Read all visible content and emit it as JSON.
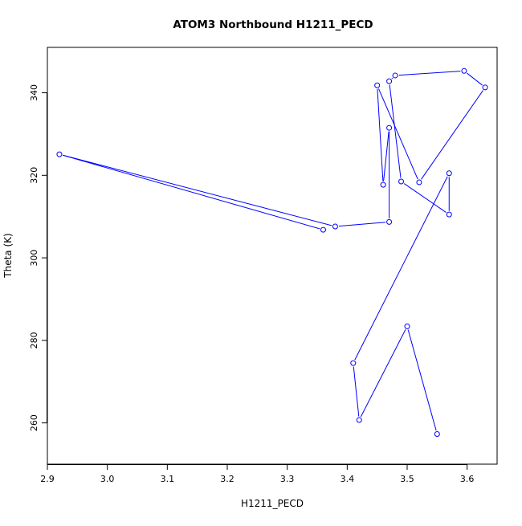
{
  "chart_data": {
    "type": "line",
    "title": "ATOM3 Northbound H1211_PECD",
    "xlabel": "H1211_PECD",
    "ylabel": "Theta (K)",
    "xlim": [
      2.9,
      3.65
    ],
    "ylim": [
      250,
      351
    ],
    "x_ticks": [
      2.9,
      3.0,
      3.1,
      3.2,
      3.3,
      3.4,
      3.5,
      3.6
    ],
    "x_tick_labels": [
      "2.9",
      "3.0",
      "3.1",
      "3.2",
      "3.3",
      "3.4",
      "3.5",
      "3.6"
    ],
    "y_ticks": [
      260,
      280,
      300,
      320,
      340
    ],
    "y_tick_labels": [
      "260",
      "280",
      "300",
      "320",
      "340"
    ],
    "grid": false,
    "series": [
      {
        "color": "#0000ff",
        "marker": "open-circle",
        "x": [
          3.55,
          3.5,
          3.42,
          3.41,
          3.57,
          3.57,
          3.49,
          3.47,
          3.48,
          3.595,
          3.63,
          3.52,
          3.45,
          3.46,
          3.47,
          3.47,
          3.38,
          2.92,
          3.36
        ],
        "y": [
          257.3,
          283.4,
          260.7,
          274.5,
          320.5,
          310.5,
          318.5,
          342.8,
          344.2,
          345.3,
          341.3,
          318.3,
          341.8,
          317.7,
          331.5,
          308.7,
          307.6,
          325.1,
          306.8
        ]
      }
    ]
  }
}
